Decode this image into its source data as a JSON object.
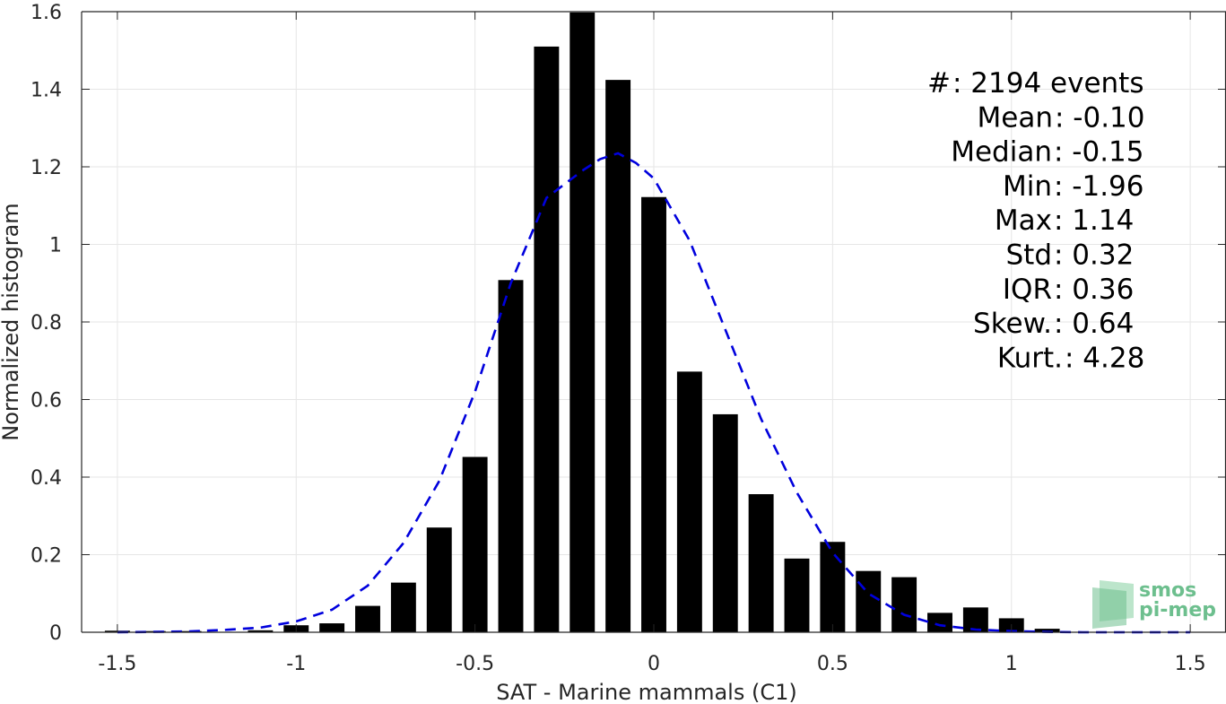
{
  "chart_data": {
    "type": "bar",
    "xlabel": "SAT - Marine mammals (C1)",
    "ylabel": "Normalized histogram",
    "xlim": [
      -1.6,
      1.6
    ],
    "ylim": [
      0,
      1.6
    ],
    "xticks": [
      -1.5,
      -1,
      -0.5,
      0,
      0.5,
      1,
      1.5
    ],
    "xtick_labels": [
      "-1.5",
      "-1",
      "-0.5",
      "0",
      "0.5",
      "1",
      "1.5"
    ],
    "yticks": [
      0,
      0.2,
      0.4,
      0.6,
      0.8,
      1,
      1.2,
      1.4,
      1.6
    ],
    "ytick_labels": [
      "0",
      "0.2",
      "0.4",
      "0.6",
      "0.8",
      "1",
      "1.2",
      "1.4",
      "1.6"
    ],
    "grid": true,
    "bar_width": 0.07,
    "bar_color": "#000000",
    "fit_color": "#0000dd",
    "bars": {
      "x": [
        -1.5,
        -1.4,
        -1.3,
        -1.2,
        -1.1,
        -1.0,
        -0.9,
        -0.8,
        -0.7,
        -0.6,
        -0.5,
        -0.4,
        -0.3,
        -0.2,
        -0.1,
        0.0,
        0.1,
        0.2,
        0.3,
        0.4,
        0.5,
        0.6,
        0.7,
        0.8,
        0.9,
        1.0,
        1.1
      ],
      "y": [
        0.004,
        0.003,
        0.003,
        0.0,
        0.005,
        0.018,
        0.023,
        0.068,
        0.128,
        0.27,
        0.452,
        0.908,
        1.51,
        1.598,
        1.424,
        1.122,
        0.672,
        0.562,
        0.356,
        0.19,
        0.233,
        0.158,
        0.142,
        0.05,
        0.064,
        0.036,
        0.009
      ]
    },
    "fit": {
      "name": "",
      "x": [
        -1.5,
        -1.4,
        -1.3,
        -1.2,
        -1.1,
        -1.0,
        -0.9,
        -0.8,
        -0.7,
        -0.6,
        -0.5,
        -0.4,
        -0.3,
        -0.2,
        -0.15,
        -0.1,
        -0.05,
        0.0,
        0.1,
        0.2,
        0.3,
        0.4,
        0.5,
        0.6,
        0.7,
        0.8,
        0.9,
        1.0,
        1.1,
        1.2,
        1.3,
        1.4,
        1.5
      ],
      "y": [
        0.0,
        0.001,
        0.002,
        0.006,
        0.012,
        0.028,
        0.058,
        0.12,
        0.23,
        0.39,
        0.62,
        0.9,
        1.12,
        1.19,
        1.22,
        1.235,
        1.21,
        1.17,
        1.01,
        0.78,
        0.55,
        0.36,
        0.205,
        0.1,
        0.045,
        0.018,
        0.007,
        0.003,
        0.001,
        0.0,
        0.0,
        0.0,
        0.0
      ]
    }
  },
  "stats": [
    {
      "label": "#  ",
      "sep": ": ",
      "value": "2194 events"
    },
    {
      "label": "Mean ",
      "sep": ": ",
      "value": "-0.10"
    },
    {
      "label": "Median ",
      "sep": ": ",
      "value": "-0.15"
    },
    {
      "label": "Min ",
      "sep": ": ",
      "value": "-1.96"
    },
    {
      "label": "Max ",
      "sep": ": ",
      "value": "1.14"
    },
    {
      "label": "Std ",
      "sep": ": ",
      "value": "0.32"
    },
    {
      "label": "IQR ",
      "sep": ": ",
      "value": "0.36"
    },
    {
      "label": "Skew. ",
      "sep": ": ",
      "value": "0.64"
    },
    {
      "label": "Kurt. ",
      "sep": ": ",
      "value": "4.28"
    }
  ],
  "logo": {
    "line1": "smos",
    "line2": "pi-mep",
    "color": "#6dbf8e"
  }
}
